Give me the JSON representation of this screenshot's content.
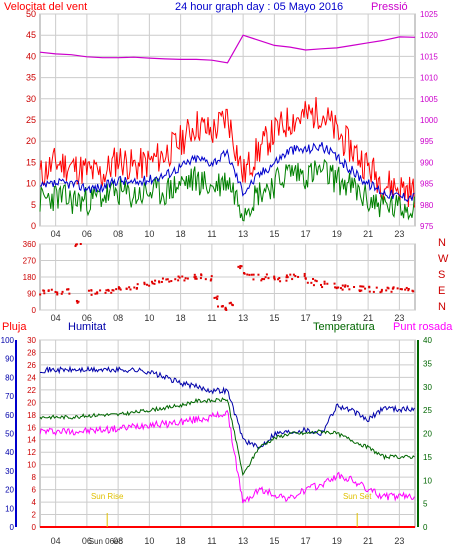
{
  "title": "24 hour graph day : 05 Mayo 2016",
  "colors": {
    "wind_gust": "#ff0000",
    "wind_avg": "#0000cc",
    "wind_green": "#008000",
    "pressure": "#cc00cc",
    "direction": "#e00000",
    "rain": "#ff0000",
    "humidity": "#0000aa",
    "temperature": "#006600",
    "dewpoint": "#ff00ff",
    "sun": "#e0c000",
    "grid": "#cccccc"
  },
  "time_ticks": [
    "04",
    "06",
    "08",
    "10",
    "18",
    "11",
    "13",
    "15",
    "17",
    "19",
    "21",
    "23"
  ],
  "chart_data": [
    {
      "type": "line",
      "name": "wind-pressure",
      "left_title": "Velocitat del vent",
      "right_title": "Pressió",
      "y_left_ticks": [
        "0",
        "5",
        "10",
        "15",
        "20",
        "25",
        "30",
        "35",
        "40",
        "45",
        "50"
      ],
      "y_right_ticks": [
        "975",
        "980",
        "985",
        "990",
        "995",
        "1000",
        "1005",
        "1010",
        "1015",
        "1020",
        "1025"
      ],
      "ylim_left": [
        0,
        50
      ],
      "ylim_right": [
        975,
        1025
      ],
      "pressure": {
        "x": [
          0,
          1,
          2,
          3,
          4,
          5,
          6,
          7,
          8,
          9,
          10,
          11,
          12,
          13,
          14,
          15,
          16,
          17,
          18,
          19,
          20,
          21,
          22,
          23,
          24
        ],
        "values": [
          1016,
          1015.6,
          1015.4,
          1014.9,
          1014.7,
          1014.7,
          1014.8,
          1014.6,
          1014.4,
          1014.3,
          1014.3,
          1014.1,
          1013.5,
          1020,
          1018.8,
          1017.6,
          1017.2,
          1016.5,
          1016.8,
          1017,
          1017.6,
          1018.2,
          1018.8,
          1019.6,
          1019.5
        ]
      },
      "wind_gust": {
        "x": [
          0,
          1,
          2,
          3,
          4,
          5,
          6,
          7,
          8,
          9,
          10,
          11,
          12,
          13,
          14,
          15,
          16,
          17,
          18,
          19,
          20,
          21,
          22,
          23,
          24
        ],
        "values": [
          12,
          15,
          14,
          13,
          12,
          16,
          14,
          15,
          17,
          20,
          24,
          22,
          26,
          12,
          18,
          22,
          25,
          26,
          27,
          22,
          18,
          14,
          10,
          9,
          8
        ]
      },
      "wind_avg": {
        "x": [
          0,
          1,
          2,
          3,
          4,
          5,
          6,
          7,
          8,
          9,
          10,
          11,
          12,
          13,
          14,
          15,
          16,
          17,
          18,
          19,
          20,
          21,
          22,
          23,
          24
        ],
        "values": [
          9,
          10,
          10,
          9,
          9,
          11,
          10,
          11,
          12,
          14,
          16,
          15,
          17,
          8,
          12,
          15,
          18,
          18,
          19,
          16,
          13,
          10,
          8,
          7,
          7
        ]
      },
      "wind_green": {
        "x": [
          0,
          1,
          2,
          3,
          4,
          5,
          6,
          7,
          8,
          9,
          10,
          11,
          12,
          13,
          14,
          15,
          16,
          17,
          18,
          19,
          20,
          21,
          22,
          23,
          24
        ],
        "values": [
          6,
          7,
          6,
          6,
          7,
          8,
          7,
          8,
          8,
          10,
          11,
          9,
          11,
          4,
          8,
          10,
          13,
          12,
          13,
          11,
          9,
          6,
          5,
          4,
          5
        ]
      }
    },
    {
      "type": "scatter",
      "name": "wind-direction",
      "y_ticks": [
        "0",
        "90",
        "180",
        "270",
        "360"
      ],
      "ylim": [
        0,
        360
      ],
      "compass": [
        "N",
        "W",
        "S",
        "E",
        "N"
      ],
      "x": [
        0,
        0.5,
        1,
        1.5,
        2,
        2.2,
        3,
        3.5,
        4,
        4.5,
        5,
        5.5,
        6,
        6.5,
        7,
        7.5,
        8,
        8.5,
        9,
        9.5,
        10,
        10.5,
        11,
        11.3,
        11.6,
        12,
        12.5,
        13,
        13.5,
        14,
        14.5,
        15,
        15.5,
        16,
        16.5,
        17,
        17.5,
        18,
        18.5,
        19,
        19.5,
        20,
        20.5,
        21,
        21.5,
        22,
        22.5,
        23,
        23.5,
        24
      ],
      "values": [
        95,
        100,
        90,
        100,
        40,
        360,
        95,
        100,
        100,
        105,
        110,
        120,
        130,
        140,
        150,
        160,
        165,
        170,
        175,
        180,
        185,
        175,
        60,
        10,
        10,
        30,
        230,
        190,
        180,
        175,
        180,
        170,
        175,
        180,
        185,
        160,
        150,
        140,
        130,
        125,
        120,
        118,
        115,
        112,
        110,
        110,
        110,
        110,
        110,
        110
      ]
    },
    {
      "type": "line",
      "name": "rain-humidity-temperature",
      "labels": {
        "rain": "Pluja",
        "humidity": "Humitat",
        "temperature": "Temperatura",
        "dewpoint": "Punt rosada"
      },
      "y_humidity_ticks": [
        "0",
        "10",
        "20",
        "30",
        "40",
        "50",
        "60",
        "70",
        "80",
        "90",
        "100"
      ],
      "y_rain_ticks": [
        "0",
        "2",
        "4",
        "6",
        "8",
        "10",
        "12",
        "14",
        "16",
        "18",
        "20",
        "22",
        "24",
        "26",
        "28",
        "30"
      ],
      "y_temp_ticks": [
        "0",
        "5",
        "10",
        "15",
        "20",
        "25",
        "30",
        "35",
        "40"
      ],
      "humidity": {
        "x": [
          0,
          1,
          2,
          3,
          4,
          5,
          6,
          7,
          8,
          9,
          10,
          11,
          12,
          13,
          14,
          15,
          16,
          17,
          18,
          19,
          20,
          21,
          22,
          23,
          24
        ],
        "values": [
          84,
          84,
          84,
          84,
          84,
          84,
          84,
          83,
          80,
          77,
          75,
          73,
          73,
          47,
          42,
          50,
          51,
          52,
          50,
          65,
          62,
          57,
          64,
          63,
          63
        ]
      },
      "temperature": {
        "x": [
          0,
          1,
          2,
          3,
          4,
          5,
          6,
          7,
          8,
          9,
          10,
          11,
          12,
          13,
          14,
          15,
          16,
          17,
          18,
          19,
          20,
          21,
          22,
          23,
          24
        ],
        "values": [
          23.5,
          23.5,
          23.5,
          23.8,
          24,
          24,
          24.5,
          25,
          25.5,
          26,
          27,
          27,
          27.3,
          11,
          17,
          19,
          20,
          20,
          20.5,
          20,
          18.5,
          17,
          15,
          15,
          15
        ]
      },
      "dewpoint": {
        "x": [
          0,
          1,
          2,
          3,
          4,
          5,
          6,
          7,
          8,
          9,
          10,
          11,
          12,
          13,
          14,
          15,
          16,
          17,
          18,
          19,
          20,
          21,
          22,
          23,
          24
        ],
        "values": [
          20.5,
          20.5,
          20.5,
          20.5,
          20.8,
          21,
          21.5,
          22,
          22,
          22.5,
          23,
          23.5,
          24.5,
          5,
          8,
          7,
          6,
          8,
          9,
          11,
          10,
          8,
          6.5,
          6.5,
          6.5
        ]
      },
      "rain": {
        "x": [
          0,
          24
        ],
        "values": [
          0,
          0
        ]
      },
      "sun_rise": {
        "label": "Sun Rise",
        "x": 4.3
      },
      "sun_set": {
        "label": "Sun Set",
        "x": 20.3
      },
      "extra_tick_label": "Sun 06ec"
    }
  ]
}
